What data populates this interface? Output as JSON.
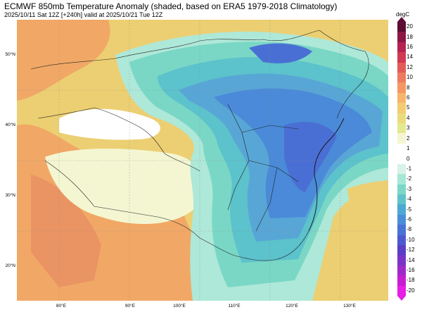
{
  "title": "ECMWF 850mb Temperature Anomaly (shaded, based on ERA5 1979-2018 Climatology)",
  "subtitle": "2025/10/11 Sat 12Z [+240h] valid at 2025/10/21 Tue 12Z",
  "lat_labels": [
    "50°N",
    "40°N",
    "30°N",
    "20°N"
  ],
  "lon_labels": [
    "80°E",
    "90°E",
    "100°E",
    "110°E",
    "120°E",
    "130°E"
  ],
  "colorbar": {
    "unit": "degC",
    "ticks": [
      "20",
      "18",
      "16",
      "14",
      "12",
      "10",
      "8",
      "6",
      "5",
      "4",
      "3",
      "2",
      "1",
      "0",
      "-1",
      "-2",
      "-3",
      "-4",
      "-5",
      "-6",
      "-8",
      "-10",
      "-12",
      "-14",
      "-16",
      "-18",
      "-20"
    ],
    "colors": [
      "#5c0d33",
      "#8c1846",
      "#b5234f",
      "#d03a52",
      "#e25b58",
      "#ee7a5f",
      "#f59763",
      "#f6b56a",
      "#f2cd72",
      "#eadc7d",
      "#e4e890",
      "#f4f6d2",
      "#ffffff",
      "#ffffff",
      "#d7f2e9",
      "#a6e7d6",
      "#7cd8c6",
      "#5fc3ca",
      "#4ea9d2",
      "#4a8ed8",
      "#4a73d6",
      "#4f59cf",
      "#5a3fc6",
      "#7a35c8",
      "#a02ac8",
      "#c81ed2",
      "#e81ee6"
    ]
  },
  "field_colors": {
    "warm_orange": "#f1a866",
    "warm_yellow": "#eccf72",
    "light_yellow": "#e8e6a0",
    "white": "#ffffff",
    "light_cyan": "#aee8d8",
    "cyan": "#7ad7c6",
    "teal": "#5cc2cb",
    "light_blue": "#58a6d6",
    "blue": "#4a8ad8",
    "deep_blue": "#4a6fd4"
  }
}
